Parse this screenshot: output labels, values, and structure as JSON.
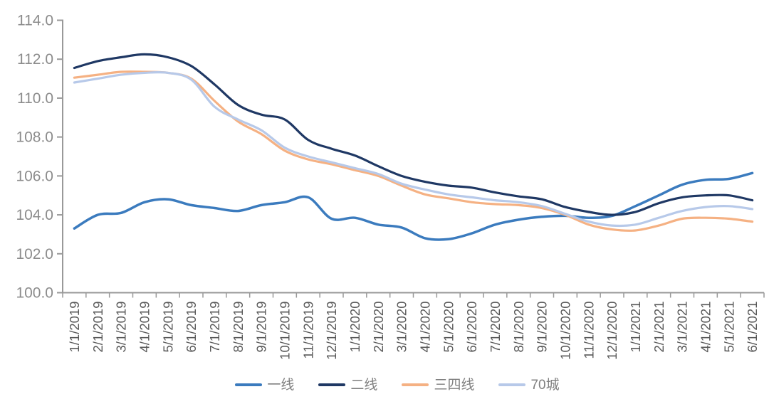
{
  "chart_data": {
    "type": "line",
    "title": "",
    "xlabel": "",
    "ylabel": "",
    "ylim": [
      100.0,
      114.0
    ],
    "ytick_step": 2.0,
    "ytick_decimals": 1,
    "grid": false,
    "legend_position": "bottom",
    "categories": [
      "1/1/2019",
      "2/1/2019",
      "3/1/2019",
      "4/1/2019",
      "5/1/2019",
      "6/1/2019",
      "7/1/2019",
      "8/1/2019",
      "9/1/2019",
      "10/1/2019",
      "11/1/2019",
      "12/1/2019",
      "1/1/2020",
      "2/1/2020",
      "3/1/2020",
      "4/1/2020",
      "5/1/2020",
      "6/1/2020",
      "7/1/2020",
      "8/1/2020",
      "9/1/2020",
      "10/1/2020",
      "11/1/2020",
      "12/1/2020",
      "1/1/2021",
      "2/1/2021",
      "3/1/2021",
      "4/1/2021",
      "5/1/2021",
      "6/1/2021"
    ],
    "series": [
      {
        "name": "一线",
        "color": "#3B7BBE",
        "stroke_width": 3.5,
        "values": [
          103.3,
          104.0,
          104.1,
          104.65,
          104.8,
          104.5,
          104.35,
          104.2,
          104.5,
          104.65,
          104.9,
          103.8,
          103.85,
          103.5,
          103.35,
          102.8,
          102.75,
          103.05,
          103.5,
          103.75,
          103.9,
          103.95,
          103.85,
          103.95,
          104.45,
          105.0,
          105.55,
          105.8,
          105.85,
          106.15
        ]
      },
      {
        "name": "二线",
        "color": "#1F3864",
        "stroke_width": 3.2,
        "values": [
          111.55,
          111.9,
          112.1,
          112.25,
          112.1,
          111.65,
          110.7,
          109.65,
          109.15,
          108.9,
          107.85,
          107.4,
          107.05,
          106.5,
          106.0,
          105.7,
          105.5,
          105.4,
          105.15,
          104.95,
          104.8,
          104.4,
          104.15,
          104.0,
          104.15,
          104.6,
          104.9,
          105.0,
          105.0,
          104.75
        ]
      },
      {
        "name": "三四线",
        "color": "#F5B183",
        "stroke_width": 3.2,
        "values": [
          111.05,
          111.2,
          111.35,
          111.35,
          111.3,
          111.0,
          109.85,
          108.8,
          108.15,
          107.3,
          106.85,
          106.6,
          106.3,
          106.0,
          105.5,
          105.05,
          104.85,
          104.65,
          104.55,
          104.5,
          104.35,
          104.0,
          103.5,
          103.25,
          103.2,
          103.45,
          103.8,
          103.85,
          103.8,
          103.65
        ]
      },
      {
        "name": "70城",
        "color": "#B7C9E9",
        "stroke_width": 3.2,
        "values": [
          110.8,
          111.0,
          111.2,
          111.3,
          111.3,
          110.95,
          109.55,
          108.9,
          108.35,
          107.45,
          107.0,
          106.7,
          106.4,
          106.1,
          105.6,
          105.3,
          105.05,
          104.9,
          104.75,
          104.65,
          104.45,
          104.05,
          103.65,
          103.45,
          103.5,
          103.85,
          104.2,
          104.4,
          104.45,
          104.3
        ]
      }
    ]
  },
  "style": {
    "background": "#FFFFFF",
    "axis_color": "#999999",
    "y_label_color": "#8C8C8C",
    "x_label_color": "#595959",
    "legend_text_color": "#7F7F7F"
  }
}
